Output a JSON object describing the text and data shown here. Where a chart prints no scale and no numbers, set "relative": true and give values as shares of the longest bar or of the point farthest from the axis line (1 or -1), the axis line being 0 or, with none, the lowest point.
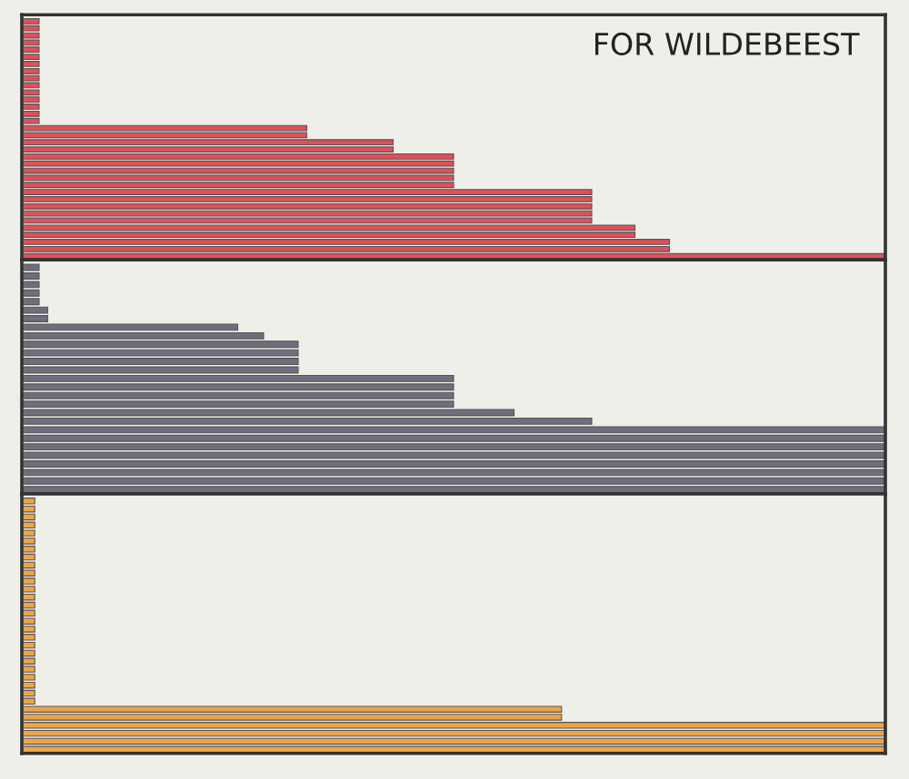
{
  "chart_data": [
    {
      "type": "bar",
      "orientation": "horizontal",
      "relative": true,
      "title": "FOR WILDEBEEST",
      "categories": [
        null,
        null,
        null,
        null,
        null,
        null,
        null,
        null,
        null,
        null,
        null,
        null,
        null,
        null,
        null,
        null,
        null,
        null,
        null,
        null,
        null,
        null,
        null,
        null,
        null,
        null,
        null,
        null,
        null,
        null,
        null,
        null,
        null,
        null
      ],
      "series": [
        {
          "color": "#e0505a",
          "values": [
            0.02,
            0.02,
            0.02,
            0.02,
            0.02,
            0.02,
            0.02,
            0.02,
            0.02,
            0.02,
            0.02,
            0.02,
            0.02,
            0.02,
            0.02,
            0.33,
            0.33,
            0.43,
            0.43,
            0.5,
            0.5,
            0.5,
            0.5,
            0.5,
            0.66,
            0.66,
            0.66,
            0.66,
            0.66,
            0.71,
            0.71,
            0.75,
            0.75,
            1
          ]
        }
      ]
    },
    {
      "type": "bar",
      "orientation": "horizontal",
      "relative": true,
      "categories": [
        null,
        null,
        null,
        null,
        null,
        null,
        null,
        null,
        null,
        null,
        null,
        null,
        null,
        null,
        null,
        null,
        null,
        null,
        null,
        null,
        null,
        null,
        null,
        null,
        null,
        null,
        null
      ],
      "series": [
        {
          "color": "#6e6e7c",
          "values": [
            0.02,
            0.02,
            0.02,
            0.02,
            0.02,
            0.03,
            0.03,
            0.25,
            0.28,
            0.32,
            0.32,
            0.32,
            0.32,
            0.5,
            0.5,
            0.5,
            0.5,
            0.57,
            0.66,
            1,
            1,
            1,
            1,
            1,
            1,
            1,
            1
          ]
        }
      ]
    },
    {
      "type": "bar",
      "orientation": "horizontal",
      "relative": true,
      "categories": [
        null,
        null,
        null,
        null,
        null,
        null,
        null,
        null,
        null,
        null,
        null,
        null,
        null,
        null,
        null,
        null,
        null,
        null,
        null,
        null,
        null,
        null,
        null,
        null,
        null,
        null,
        null,
        null,
        null,
        null,
        null,
        null
      ],
      "series": [
        {
          "color": "#eba548",
          "values": [
            0.015,
            0.015,
            0.015,
            0.015,
            0.015,
            0.015,
            0.015,
            0.015,
            0.015,
            0.015,
            0.015,
            0.015,
            0.015,
            0.015,
            0.015,
            0.015,
            0.015,
            0.015,
            0.015,
            0.015,
            0.015,
            0.015,
            0.015,
            0.015,
            0.015,
            0.015,
            0.625,
            0.625,
            1,
            1,
            1,
            1
          ]
        }
      ]
    }
  ]
}
